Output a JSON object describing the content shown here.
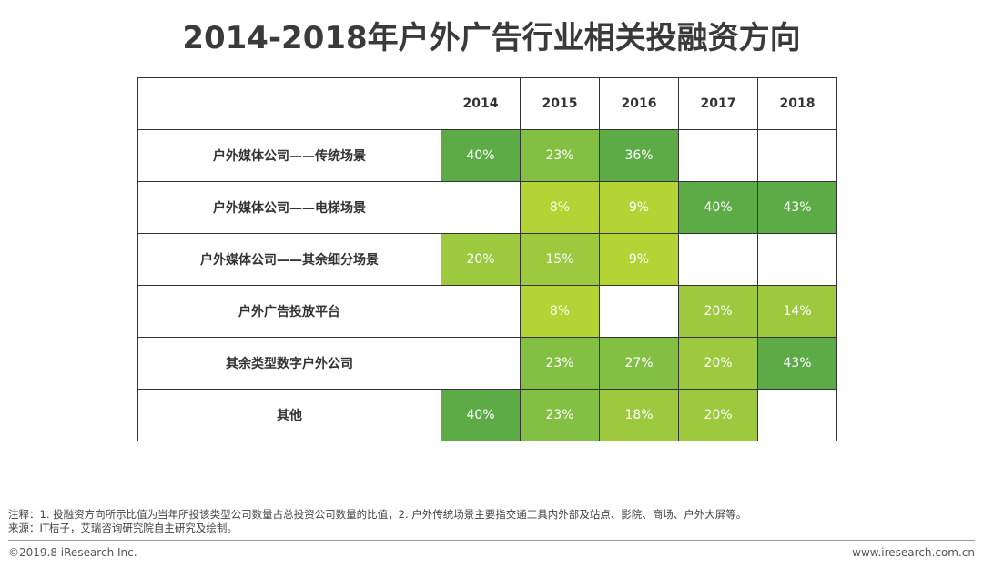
{
  "title": "2014-2018年户外广告行业相关投融资方向",
  "chart_data": {
    "type": "table",
    "title": "2014-2018年户外广告行业相关投融资方向",
    "columns": [
      "2014",
      "2015",
      "2016",
      "2017",
      "2018"
    ],
    "rows": [
      {
        "label": "户外媒体公司——传统场景",
        "values": [
          "40%",
          "23%",
          "36%",
          "",
          ""
        ]
      },
      {
        "label": "户外媒体公司——电梯场景",
        "values": [
          "",
          "8%",
          "9%",
          "40%",
          "43%"
        ]
      },
      {
        "label": "户外媒体公司——其余细分场景",
        "values": [
          "20%",
          "15%",
          "9%",
          "",
          ""
        ]
      },
      {
        "label": "户外广告投放平台",
        "values": [
          "",
          "8%",
          "",
          "20%",
          "14%"
        ]
      },
      {
        "label": "其余类型数字户外公司",
        "values": [
          "",
          "23%",
          "27%",
          "20%",
          "43%"
        ]
      },
      {
        "label": "其他",
        "values": [
          "40%",
          "23%",
          "18%",
          "20%",
          ""
        ]
      }
    ],
    "color_scale": [
      {
        "max": 10,
        "color": "#b4d334"
      },
      {
        "max": 20,
        "color": "#9cc93e"
      },
      {
        "max": 30,
        "color": "#82bf42"
      },
      {
        "max": 100,
        "color": "#5cab46"
      }
    ]
  },
  "notes": {
    "note": "注释：1. 投融资方向所示比值为当年所投该类型公司数量占总投资公司数量的比值；2. 户外传统场景主要指交通工具内外部及站点、影院、商场、户外大屏等。",
    "source": "来源：IT桔子，艾瑞咨询研究院自主研究及绘制。"
  },
  "footer": {
    "copyright": "©2019.8 iResearch Inc.",
    "website": "www.iresearch.com.cn"
  }
}
